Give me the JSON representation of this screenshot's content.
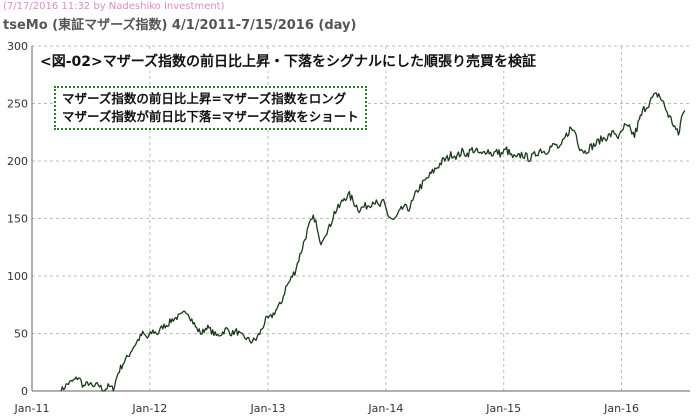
{
  "header": {
    "credit": "(7/17/2016 11:32 by Nadeshiko Investment)",
    "series_title": "tseMo (東証マザーズ指数)  4/1/2011-7/15/2016 (day)"
  },
  "annotations": {
    "headline": "<図-02>マザーズ指数の前日比上昇・下落をシグナルにした順張り売買を検証",
    "rule_long": "マザーズ指数の前日比上昇=マザーズ指数をロング",
    "rule_short": "マザーズ指数が前日比下落=マザーズ指数をショート"
  },
  "colors": {
    "line": "#1a3a1a",
    "axis": "#666666",
    "grid": "#bdbdbd",
    "credit": "#e08ac8",
    "box_border": "#1c8a1c"
  },
  "chart_data": {
    "type": "line",
    "title": "tseMo (東証マザーズ指数)  4/1/2011-7/15/2016 (day)",
    "xlabel": "",
    "ylabel": "",
    "xlim": [
      "2011-01-01",
      "2016-07-31"
    ],
    "ylim": [
      0,
      300
    ],
    "y_ticks": [
      0,
      50,
      100,
      150,
      200,
      250,
      300
    ],
    "x_ticks": [
      {
        "date": "2011-01-01",
        "label": "Jan-11"
      },
      {
        "date": "2012-01-01",
        "label": "Jan-12"
      },
      {
        "date": "2013-01-01",
        "label": "Jan-13"
      },
      {
        "date": "2014-01-01",
        "label": "Jan-14"
      },
      {
        "date": "2015-01-01",
        "label": "Jan-15"
      },
      {
        "date": "2016-01-01",
        "label": "Jan-16"
      }
    ],
    "grid": true,
    "series": [
      {
        "points": [
          [
            "2011-04-01",
            0
          ],
          [
            "2011-04-20",
            6
          ],
          [
            "2011-05-10",
            9
          ],
          [
            "2011-05-25",
            12
          ],
          [
            "2011-06-10",
            4
          ],
          [
            "2011-06-25",
            7
          ],
          [
            "2011-07-10",
            3
          ],
          [
            "2011-07-25",
            6
          ],
          [
            "2011-08-10",
            0
          ],
          [
            "2011-08-25",
            4
          ],
          [
            "2011-09-10",
            2
          ],
          [
            "2011-09-25",
            16
          ],
          [
            "2011-10-10",
            24
          ],
          [
            "2011-10-25",
            30
          ],
          [
            "2011-11-10",
            38
          ],
          [
            "2011-11-25",
            44
          ],
          [
            "2011-12-10",
            50
          ],
          [
            "2011-12-25",
            46
          ],
          [
            "2012-01-10",
            52
          ],
          [
            "2012-01-25",
            50
          ],
          [
            "2012-02-10",
            56
          ],
          [
            "2012-02-25",
            58
          ],
          [
            "2012-03-10",
            62
          ],
          [
            "2012-03-25",
            64
          ],
          [
            "2012-04-10",
            66
          ],
          [
            "2012-04-25",
            70
          ],
          [
            "2012-05-10",
            62
          ],
          [
            "2012-05-25",
            54
          ],
          [
            "2012-06-10",
            50
          ],
          [
            "2012-06-25",
            56
          ],
          [
            "2012-07-10",
            52
          ],
          [
            "2012-07-25",
            48
          ],
          [
            "2012-08-10",
            50
          ],
          [
            "2012-08-25",
            54
          ],
          [
            "2012-09-10",
            50
          ],
          [
            "2012-09-25",
            52
          ],
          [
            "2012-10-10",
            48
          ],
          [
            "2012-10-25",
            46
          ],
          [
            "2012-11-10",
            43
          ],
          [
            "2012-11-25",
            45
          ],
          [
            "2012-12-10",
            52
          ],
          [
            "2012-12-25",
            62
          ],
          [
            "2013-01-10",
            64
          ],
          [
            "2013-01-25",
            70
          ],
          [
            "2013-02-10",
            76
          ],
          [
            "2013-02-25",
            90
          ],
          [
            "2013-03-10",
            96
          ],
          [
            "2013-03-25",
            104
          ],
          [
            "2013-04-10",
            118
          ],
          [
            "2013-04-25",
            132
          ],
          [
            "2013-05-10",
            145
          ],
          [
            "2013-05-25",
            152
          ],
          [
            "2013-06-10",
            128
          ],
          [
            "2013-06-25",
            136
          ],
          [
            "2013-07-10",
            142
          ],
          [
            "2013-07-25",
            155
          ],
          [
            "2013-08-10",
            160
          ],
          [
            "2013-08-25",
            168
          ],
          [
            "2013-09-10",
            170
          ],
          [
            "2013-09-25",
            164
          ],
          [
            "2013-10-10",
            158
          ],
          [
            "2013-10-25",
            160
          ],
          [
            "2013-11-10",
            162
          ],
          [
            "2013-11-25",
            166
          ],
          [
            "2013-12-10",
            160
          ],
          [
            "2013-12-25",
            164
          ],
          [
            "2014-01-10",
            152
          ],
          [
            "2014-01-25",
            148
          ],
          [
            "2014-02-10",
            154
          ],
          [
            "2014-02-25",
            160
          ],
          [
            "2014-03-10",
            158
          ],
          [
            "2014-03-25",
            164
          ],
          [
            "2014-04-10",
            175
          ],
          [
            "2014-04-25",
            180
          ],
          [
            "2014-05-10",
            185
          ],
          [
            "2014-05-25",
            190
          ],
          [
            "2014-06-10",
            195
          ],
          [
            "2014-06-25",
            200
          ],
          [
            "2014-07-10",
            202
          ],
          [
            "2014-07-25",
            206
          ],
          [
            "2014-08-10",
            204
          ],
          [
            "2014-08-25",
            208
          ],
          [
            "2014-09-10",
            206
          ],
          [
            "2014-09-25",
            210
          ],
          [
            "2014-10-10",
            208
          ],
          [
            "2014-10-25",
            205
          ],
          [
            "2014-11-10",
            210
          ],
          [
            "2014-11-25",
            206
          ],
          [
            "2014-12-10",
            208
          ],
          [
            "2014-12-25",
            206
          ],
          [
            "2015-01-10",
            210
          ],
          [
            "2015-01-25",
            204
          ],
          [
            "2015-02-10",
            202
          ],
          [
            "2015-02-25",
            206
          ],
          [
            "2015-03-10",
            204
          ],
          [
            "2015-03-25",
            202
          ],
          [
            "2015-04-10",
            206
          ],
          [
            "2015-04-25",
            210
          ],
          [
            "2015-05-10",
            208
          ],
          [
            "2015-05-25",
            212
          ],
          [
            "2015-06-10",
            214
          ],
          [
            "2015-06-25",
            210
          ],
          [
            "2015-07-10",
            220
          ],
          [
            "2015-07-25",
            228
          ],
          [
            "2015-08-10",
            226
          ],
          [
            "2015-08-25",
            212
          ],
          [
            "2015-09-10",
            208
          ],
          [
            "2015-09-25",
            212
          ],
          [
            "2015-10-10",
            214
          ],
          [
            "2015-10-25",
            218
          ],
          [
            "2015-11-10",
            220
          ],
          [
            "2015-11-25",
            222
          ],
          [
            "2015-12-10",
            225
          ],
          [
            "2015-12-25",
            220
          ],
          [
            "2016-01-10",
            230
          ],
          [
            "2016-01-25",
            228
          ],
          [
            "2016-02-10",
            222
          ],
          [
            "2016-02-25",
            235
          ],
          [
            "2016-03-10",
            245
          ],
          [
            "2016-03-25",
            250
          ],
          [
            "2016-04-10",
            256
          ],
          [
            "2016-04-25",
            258
          ],
          [
            "2016-05-10",
            250
          ],
          [
            "2016-05-25",
            240
          ],
          [
            "2016-06-10",
            232
          ],
          [
            "2016-06-25",
            222
          ],
          [
            "2016-07-05",
            238
          ],
          [
            "2016-07-15",
            244
          ]
        ]
      }
    ]
  }
}
